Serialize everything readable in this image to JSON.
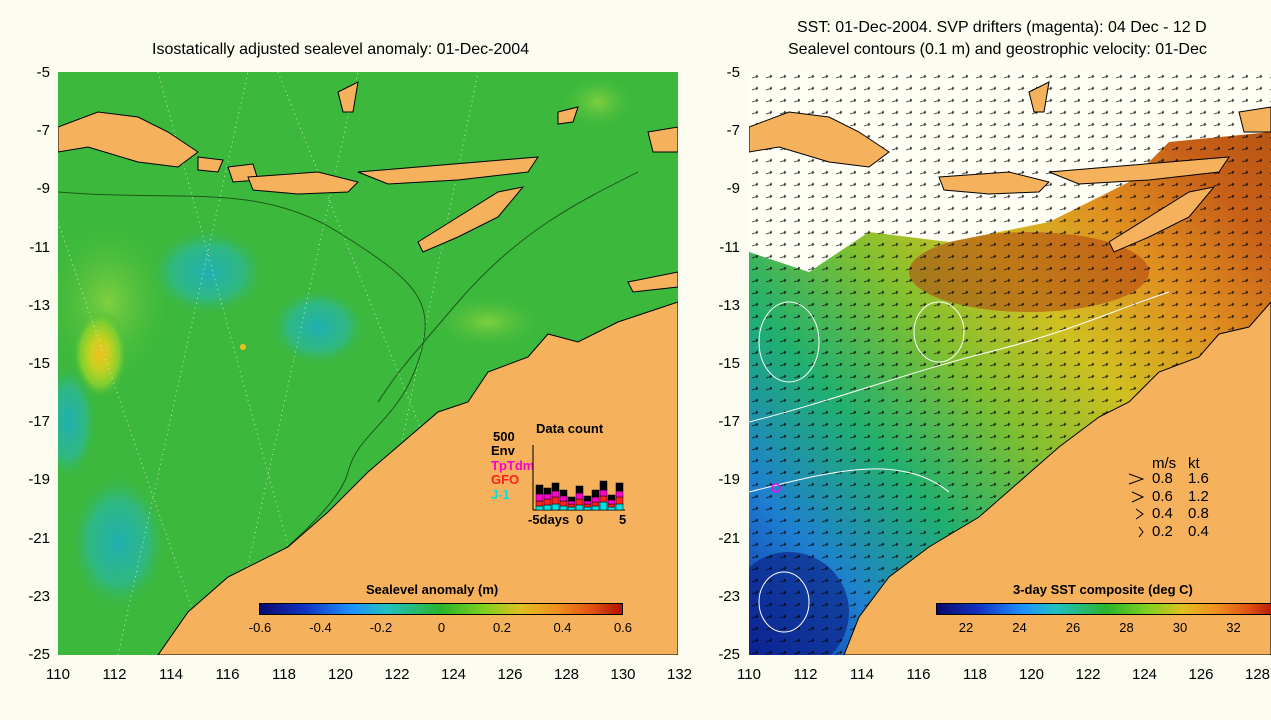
{
  "left_panel": {
    "title": "Isostatically adjusted sealevel anomaly: 01-Dec-2004",
    "y_ticks": [
      "-5",
      "-7",
      "-9",
      "-11",
      "-13",
      "-15",
      "-17",
      "-19",
      "-21",
      "-23",
      "-25"
    ],
    "x_ticks": [
      "110",
      "112",
      "114",
      "116",
      "118",
      "120",
      "122",
      "124",
      "126",
      "128",
      "130",
      "132"
    ],
    "colorbar": {
      "title": "Sealevel anomaly (m)",
      "ticks": [
        "-0.6",
        "-0.4",
        "-0.2",
        "0",
        "0.2",
        "0.4",
        "0.6"
      ]
    },
    "data_count": {
      "title": "Data count",
      "scale_label": "500",
      "series": [
        {
          "name": "Env",
          "color": "#000000"
        },
        {
          "name": "TpTdm",
          "color": "#ff00cc"
        },
        {
          "name": "GFO",
          "color": "#ff2020"
        },
        {
          "name": "J-1",
          "color": "#00e0e0"
        }
      ],
      "x_labels": [
        "-5days",
        "0",
        "5"
      ]
    }
  },
  "right_panel": {
    "title_line1": "SST: 01-Dec-2004. SVP drifters (magenta): 04 Dec - 12 D",
    "title_line2": "Sealevel contours (0.1 m) and geostrophic velocity: 01-Dec",
    "y_ticks": [
      "-5",
      "-7",
      "-9",
      "-11",
      "-13",
      "-15",
      "-17",
      "-19",
      "-21",
      "-23",
      "-25"
    ],
    "x_ticks": [
      "110",
      "112",
      "114",
      "116",
      "118",
      "120",
      "122",
      "124",
      "126",
      "128"
    ],
    "colorbar": {
      "title": "3-day SST composite (deg C)",
      "ticks": [
        "22",
        "24",
        "26",
        "28",
        "30",
        "32"
      ]
    },
    "velocity_legend": {
      "header_ms": "m/s",
      "header_kt": "kt",
      "rows": [
        {
          "ms": "0.8",
          "kt": "1.6"
        },
        {
          "ms": "0.6",
          "kt": "1.2"
        },
        {
          "ms": "0.4",
          "kt": "0.8"
        },
        {
          "ms": "0.2",
          "kt": "0.4"
        }
      ]
    }
  },
  "colors": {
    "land": "#f5b15c",
    "sea_base": "#3cb83c",
    "background": "#fdfcf0"
  }
}
